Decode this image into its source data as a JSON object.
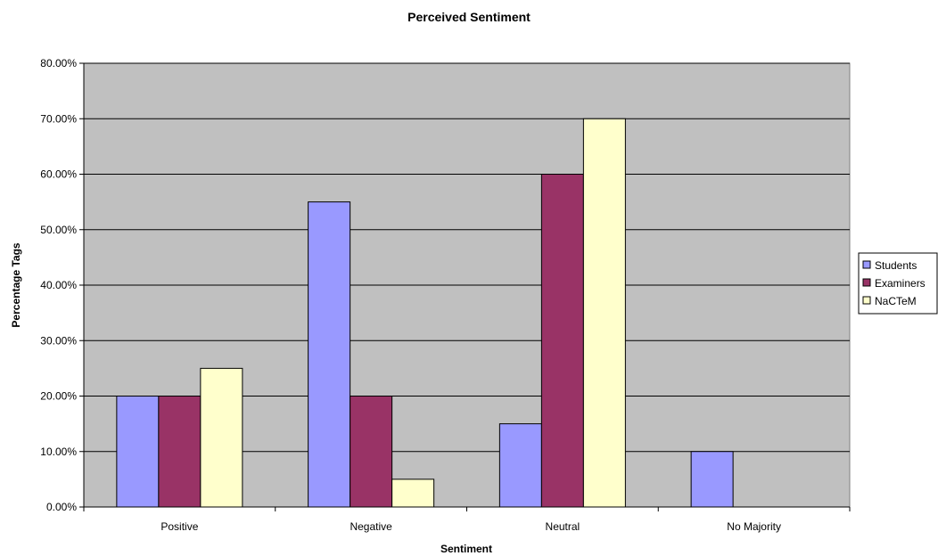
{
  "chart_data": {
    "type": "bar",
    "title": "Perceived Sentiment",
    "xlabel": "Sentiment",
    "ylabel": "Percentage Tags",
    "categories": [
      "Positive",
      "Negative",
      "Neutral",
      "No Majority"
    ],
    "series": [
      {
        "name": "Students",
        "color": "#9999ff",
        "values": [
          20,
          55,
          15,
          10
        ]
      },
      {
        "name": "Examiners",
        "color": "#993366",
        "values": [
          20,
          20,
          60,
          null
        ]
      },
      {
        "name": "NaCTeM",
        "color": "#ffffcc",
        "values": [
          25,
          5,
          70,
          null
        ]
      }
    ],
    "ylim": [
      0,
      80
    ],
    "yticks": [
      0,
      10,
      20,
      30,
      40,
      50,
      60,
      70,
      80
    ],
    "ytick_labels": [
      "0.00%",
      "10.00%",
      "20.00%",
      "30.00%",
      "40.00%",
      "50.00%",
      "60.00%",
      "70.00%",
      "80.00%"
    ],
    "grid": true,
    "plot_background": "#c0c0c0",
    "legend_position": "right"
  }
}
